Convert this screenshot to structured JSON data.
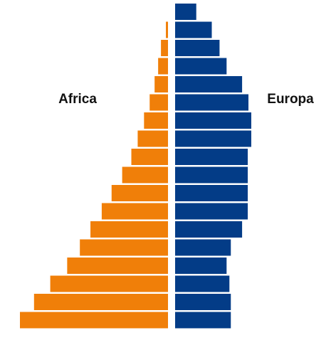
{
  "chart_data": {
    "type": "bar",
    "orientation": "horizontal-pyramid",
    "title": "",
    "xlabel": "",
    "ylabel": "",
    "age_groups_count": 18,
    "value_range": [
      0,
      21
    ],
    "grid": false,
    "legend": "none",
    "series": [
      {
        "name": "Africa",
        "side": "left",
        "color": "#f07f09",
        "values": [
          0,
          0.3,
          1.0,
          1.4,
          1.9,
          2.6,
          3.4,
          4.3,
          5.2,
          6.5,
          8.0,
          9.4,
          11.0,
          12.5,
          14.3,
          16.7,
          19.0,
          21.0
        ]
      },
      {
        "name": "Europa",
        "side": "right",
        "color": "#033c87",
        "values": [
          3.0,
          5.2,
          6.3,
          7.3,
          9.5,
          10.4,
          10.8,
          10.8,
          10.3,
          10.3,
          10.3,
          10.3,
          9.5,
          7.9,
          7.3,
          7.7,
          7.9,
          7.9
        ]
      }
    ]
  }
}
